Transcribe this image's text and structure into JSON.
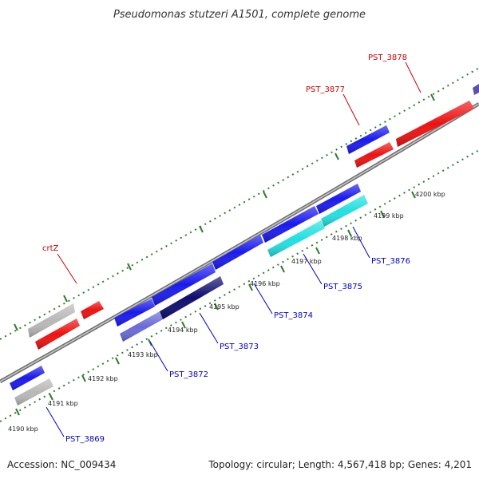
{
  "title": "Pseudomonas stutzeri A1501, complete genome",
  "footer": {
    "accession": "Accession: NC_009434",
    "summary": "Topology: circular; Length: 4,567,418 bp; Genes: 4,201"
  },
  "colors": {
    "backbone": "#888888",
    "tick": "#2e7d2e",
    "forward_label": "#cc0000",
    "reverse_label": "#0000cc",
    "cds_blue": "#1a1aee",
    "cds_red": "#ee1111",
    "cds_grey": "#b8b8b8",
    "cds_navy": "#0d0d70",
    "cds_violet": "#6a6ad8",
    "cds_cyan": "#22e0e0"
  },
  "kbp_labels": [
    "4190 kbp",
    "4191 kbp",
    "4192 kbp",
    "4193 kbp",
    "4194 kbp",
    "4195 kbp",
    "4196 kbp",
    "4197 kbp",
    "4198 kbp",
    "4199 kbp",
    "4200 kbp"
  ],
  "gene_labels_forward": [
    "crtZ",
    "PST_3877",
    "PST_3878"
  ],
  "gene_labels_reverse": [
    "PST_3869",
    "PST_3872",
    "PST_3873",
    "PST_3874",
    "PST_3875",
    "PST_3876"
  ]
}
